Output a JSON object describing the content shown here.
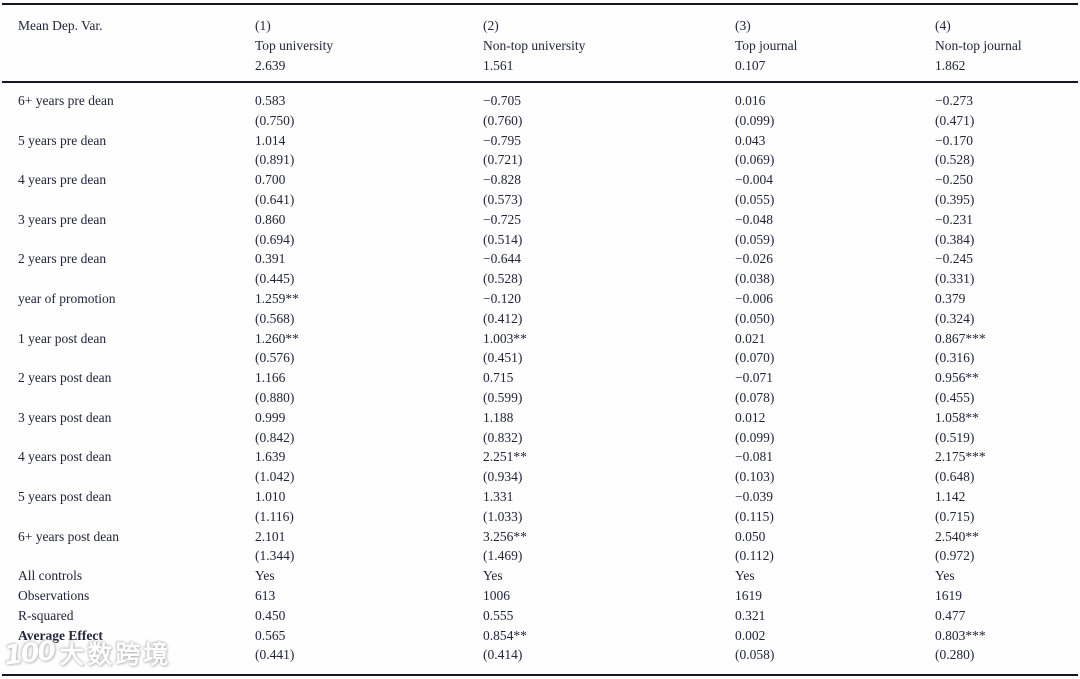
{
  "colors": {
    "background": "#ffffff",
    "text": "#24243a",
    "rule": "#16162b"
  },
  "watermark": {
    "logo": "100",
    "text": "大数跨境"
  },
  "table": {
    "header": {
      "label": "Mean Dep. Var.",
      "columns": [
        {
          "number": "(1)",
          "name": "Top university",
          "mean": "2.639"
        },
        {
          "number": "(2)",
          "name": "Non-top university",
          "mean": "1.561"
        },
        {
          "number": "(3)",
          "name": "Top journal",
          "mean": "0.107"
        },
        {
          "number": "(4)",
          "name": "Non-top journal",
          "mean": "1.862"
        }
      ]
    },
    "rows": [
      {
        "label": "6+ years pre dean",
        "bold": false,
        "values": [
          "0.583",
          "−0.705",
          "0.016",
          "−0.273"
        ],
        "se": [
          "(0.750)",
          "(0.760)",
          "(0.099)",
          "(0.471)"
        ]
      },
      {
        "label": "5 years pre dean",
        "bold": false,
        "values": [
          "1.014",
          "−0.795",
          "0.043",
          "−0.170"
        ],
        "se": [
          "(0.891)",
          "(0.721)",
          "(0.069)",
          "(0.528)"
        ]
      },
      {
        "label": "4 years pre dean",
        "bold": false,
        "values": [
          "0.700",
          "−0.828",
          "−0.004",
          "−0.250"
        ],
        "se": [
          "(0.641)",
          "(0.573)",
          "(0.055)",
          "(0.395)"
        ]
      },
      {
        "label": "3 years pre dean",
        "bold": false,
        "values": [
          "0.860",
          "−0.725",
          "−0.048",
          "−0.231"
        ],
        "se": [
          "(0.694)",
          "(0.514)",
          "(0.059)",
          "(0.384)"
        ]
      },
      {
        "label": "2 years pre dean",
        "bold": false,
        "values": [
          "0.391",
          "−0.644",
          "−0.026",
          "−0.245"
        ],
        "se": [
          "(0.445)",
          "(0.528)",
          "(0.038)",
          "(0.331)"
        ]
      },
      {
        "label": "year of promotion",
        "bold": false,
        "values": [
          "1.259**",
          "−0.120",
          "−0.006",
          "0.379"
        ],
        "se": [
          "(0.568)",
          "(0.412)",
          "(0.050)",
          "(0.324)"
        ]
      },
      {
        "label": "1 year post dean",
        "bold": false,
        "values": [
          "1.260**",
          "1.003**",
          "0.021",
          "0.867***"
        ],
        "se": [
          "(0.576)",
          "(0.451)",
          "(0.070)",
          "(0.316)"
        ]
      },
      {
        "label": "2 years post dean",
        "bold": false,
        "values": [
          "1.166",
          "0.715",
          "−0.071",
          "0.956**"
        ],
        "se": [
          "(0.880)",
          "(0.599)",
          "(0.078)",
          "(0.455)"
        ]
      },
      {
        "label": "3 years post dean",
        "bold": false,
        "values": [
          "0.999",
          "1.188",
          "0.012",
          "1.058**"
        ],
        "se": [
          "(0.842)",
          "(0.832)",
          "(0.099)",
          "(0.519)"
        ]
      },
      {
        "label": "4 years post dean",
        "bold": false,
        "values": [
          "1.639",
          "2.251**",
          "−0.081",
          "2.175***"
        ],
        "se": [
          "(1.042)",
          "(0.934)",
          "(0.103)",
          "(0.648)"
        ]
      },
      {
        "label": "5 years post dean",
        "bold": false,
        "values": [
          "1.010",
          "1.331",
          "−0.039",
          "1.142"
        ],
        "se": [
          "(1.116)",
          "(1.033)",
          "(0.115)",
          "(0.715)"
        ]
      },
      {
        "label": "6+ years post dean",
        "bold": false,
        "values": [
          "2.101",
          "3.256**",
          "0.050",
          "2.540**"
        ],
        "se": [
          "(1.344)",
          "(1.469)",
          "(0.112)",
          "(0.972)"
        ]
      },
      {
        "label": "All controls",
        "bold": false,
        "values": [
          "Yes",
          "Yes",
          "Yes",
          "Yes"
        ]
      },
      {
        "label": "Observations",
        "bold": false,
        "values": [
          "613",
          "1006",
          "1619",
          "1619"
        ]
      },
      {
        "label": "R-squared",
        "bold": false,
        "values": [
          "0.450",
          "0.555",
          "0.321",
          "0.477"
        ]
      },
      {
        "label": "Average Effect",
        "bold": true,
        "values": [
          "0.565",
          "0.854**",
          "0.002",
          "0.803***"
        ],
        "se": [
          "(0.441)",
          "(0.414)",
          "(0.058)",
          "(0.280)"
        ]
      }
    ]
  }
}
